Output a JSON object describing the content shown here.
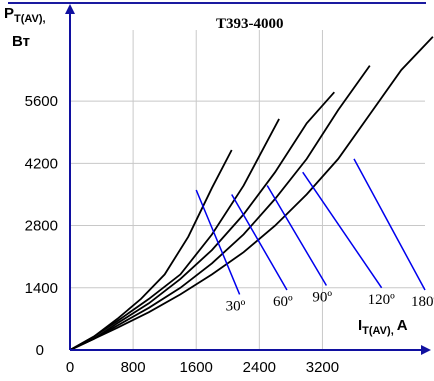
{
  "chart_data": {
    "type": "line",
    "title": "T393-4000",
    "ylabel": {
      "main": "P",
      "sub": "T(AV)",
      "unit": "Вт"
    },
    "xlabel": {
      "main": "I",
      "sub": "T(AV)",
      "unit": "A"
    },
    "xlim": [
      0,
      4500
    ],
    "ylim": [
      0,
      7200
    ],
    "x_ticks": [
      0,
      800,
      1600,
      2400,
      3200
    ],
    "y_ticks": [
      0,
      1400,
      2800,
      4200,
      5600
    ],
    "grid": true,
    "colors": {
      "axis": "#1010a0",
      "curve": "#000000",
      "marker": "#0000ee",
      "border": "#1a1aa0"
    },
    "series": [
      {
        "name": "30º",
        "points": [
          [
            0,
            0
          ],
          [
            300,
            300
          ],
          [
            600,
            700
          ],
          [
            900,
            1150
          ],
          [
            1200,
            1700
          ],
          [
            1500,
            2550
          ],
          [
            1800,
            3650
          ],
          [
            2050,
            4500
          ]
        ]
      },
      {
        "name": "60º",
        "points": [
          [
            0,
            0
          ],
          [
            300,
            300
          ],
          [
            600,
            650
          ],
          [
            1000,
            1150
          ],
          [
            1400,
            1700
          ],
          [
            1800,
            2600
          ],
          [
            2200,
            3700
          ],
          [
            2650,
            5200
          ]
        ]
      },
      {
        "name": "90º",
        "points": [
          [
            0,
            0
          ],
          [
            300,
            250
          ],
          [
            600,
            600
          ],
          [
            1000,
            1050
          ],
          [
            1400,
            1600
          ],
          [
            1800,
            2250
          ],
          [
            2200,
            3050
          ],
          [
            2600,
            4000
          ],
          [
            3000,
            5100
          ],
          [
            3350,
            5800
          ]
        ]
      },
      {
        "name": "120º",
        "points": [
          [
            0,
            0
          ],
          [
            300,
            250
          ],
          [
            600,
            550
          ],
          [
            1000,
            950
          ],
          [
            1400,
            1400
          ],
          [
            1800,
            1950
          ],
          [
            2200,
            2600
          ],
          [
            2600,
            3400
          ],
          [
            3000,
            4300
          ],
          [
            3400,
            5400
          ],
          [
            3800,
            6400
          ]
        ]
      },
      {
        "name": "180º",
        "points": [
          [
            0,
            0
          ],
          [
            300,
            250
          ],
          [
            600,
            500
          ],
          [
            1000,
            850
          ],
          [
            1400,
            1250
          ],
          [
            1800,
            1700
          ],
          [
            2200,
            2200
          ],
          [
            2600,
            2800
          ],
          [
            3000,
            3500
          ],
          [
            3400,
            4300
          ],
          [
            3800,
            5300
          ],
          [
            4200,
            6300
          ],
          [
            4600,
            7050
          ]
        ]
      }
    ],
    "markers": [
      {
        "label": "30º",
        "from": [
          1600,
          3600
        ],
        "to": [
          2150,
          1250
        ]
      },
      {
        "label": "60º",
        "from": [
          2050,
          3500
        ],
        "to": [
          2750,
          1350
        ]
      },
      {
        "label": "90º",
        "from": [
          2500,
          3700
        ],
        "to": [
          3250,
          1450
        ]
      },
      {
        "label": "120º",
        "from": [
          2950,
          4000
        ],
        "to": [
          3950,
          1400
        ]
      },
      {
        "label": "180º",
        "from": [
          3600,
          4300
        ],
        "to": [
          4500,
          1350
        ]
      }
    ]
  }
}
